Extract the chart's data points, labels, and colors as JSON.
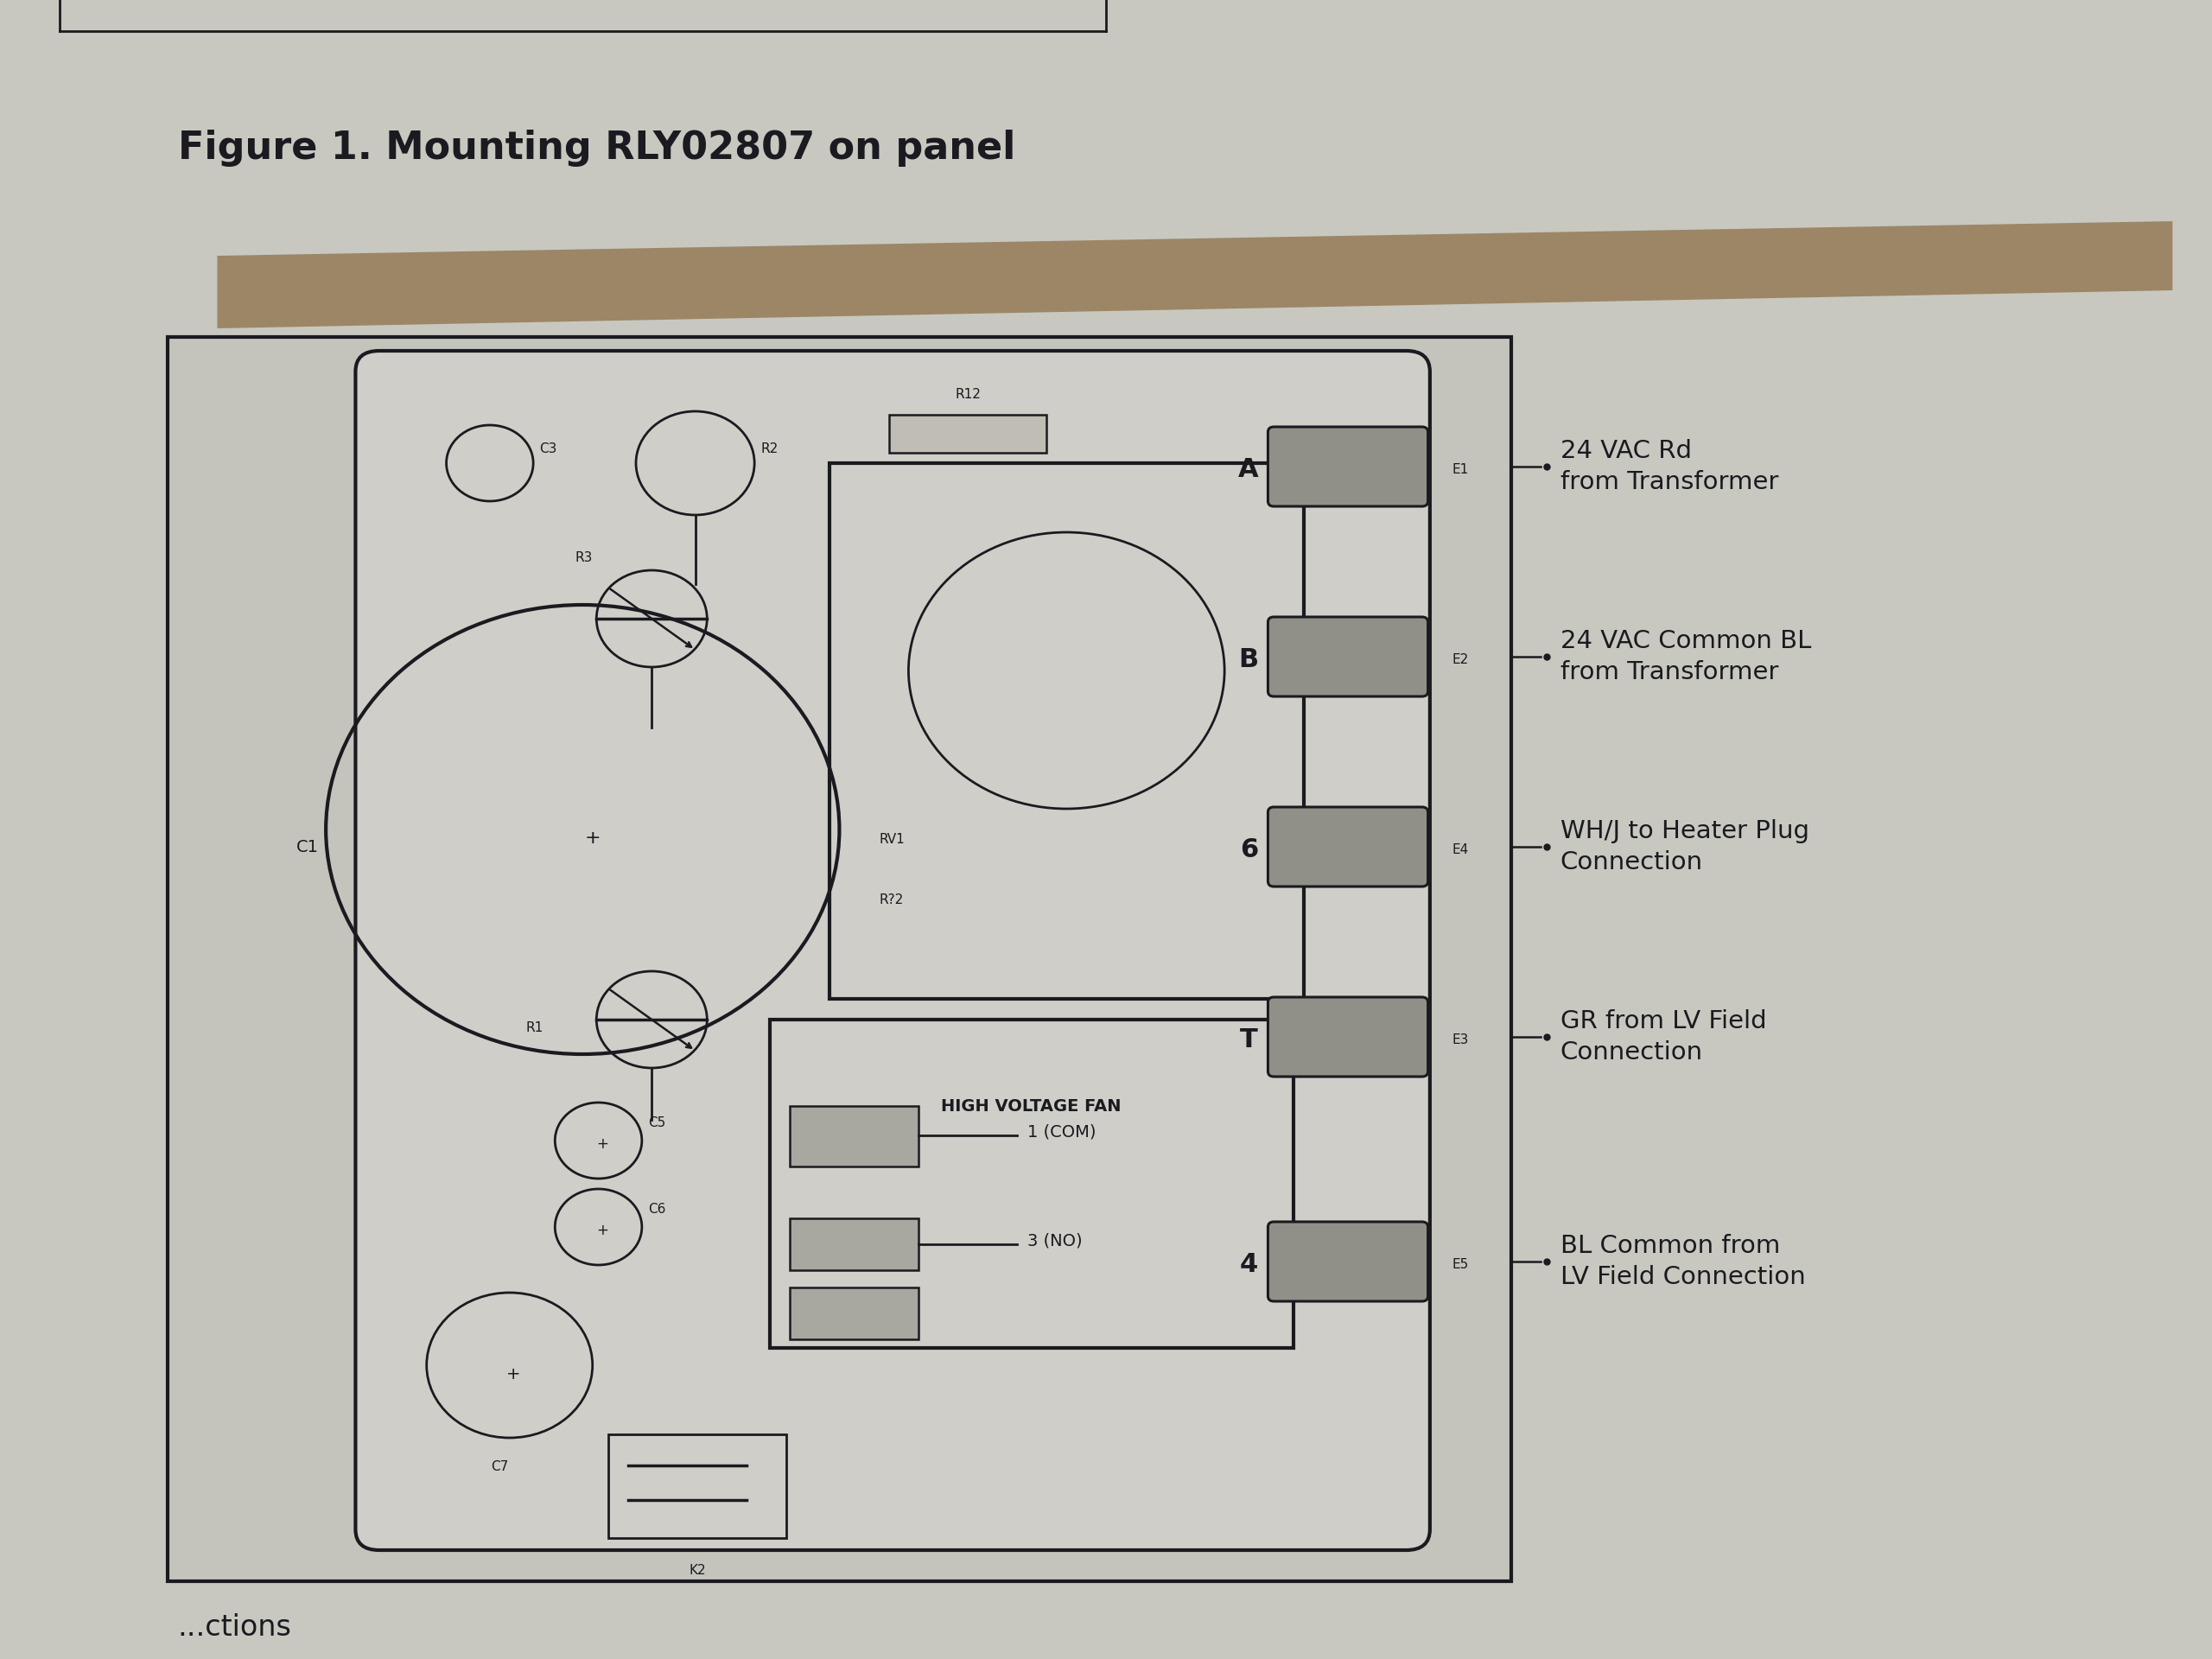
{
  "bg_color": "#b8b8b0",
  "paper_color": "#c8c8c0",
  "diagram_bg": "#c4c4bc",
  "inner_bg": "#d0cec8",
  "line_color": "#1a1a20",
  "text_color": "#1a1a20",
  "title": "Figure 1. Mounting RLY02807 on panel",
  "title_fontsize": 32,
  "label_fontsize": 20,
  "small_fontsize": 14,
  "tiny_fontsize": 11,
  "hvfan_label": "HIGH VOLTAGE FAN",
  "com_label": "1 (COM)",
  "no_label": "3 (NO)",
  "shadow_color": "#8a6a40",
  "shadow_alpha": 0.7,
  "annot_lines": [
    "24 VAC Rd\nfrom Transformer",
    "24 VAC Common BL\nfrom Transformer",
    "WH/J to Heater Plug\nConnection",
    "GR from LV Field\nConnection",
    "BL Common from\nLV Field Connection"
  ],
  "term_labels": [
    "A",
    "B",
    "6",
    "T",
    "4"
  ],
  "term_sub": [
    "E1",
    "E2",
    "E4",
    "E3",
    "E5"
  ]
}
